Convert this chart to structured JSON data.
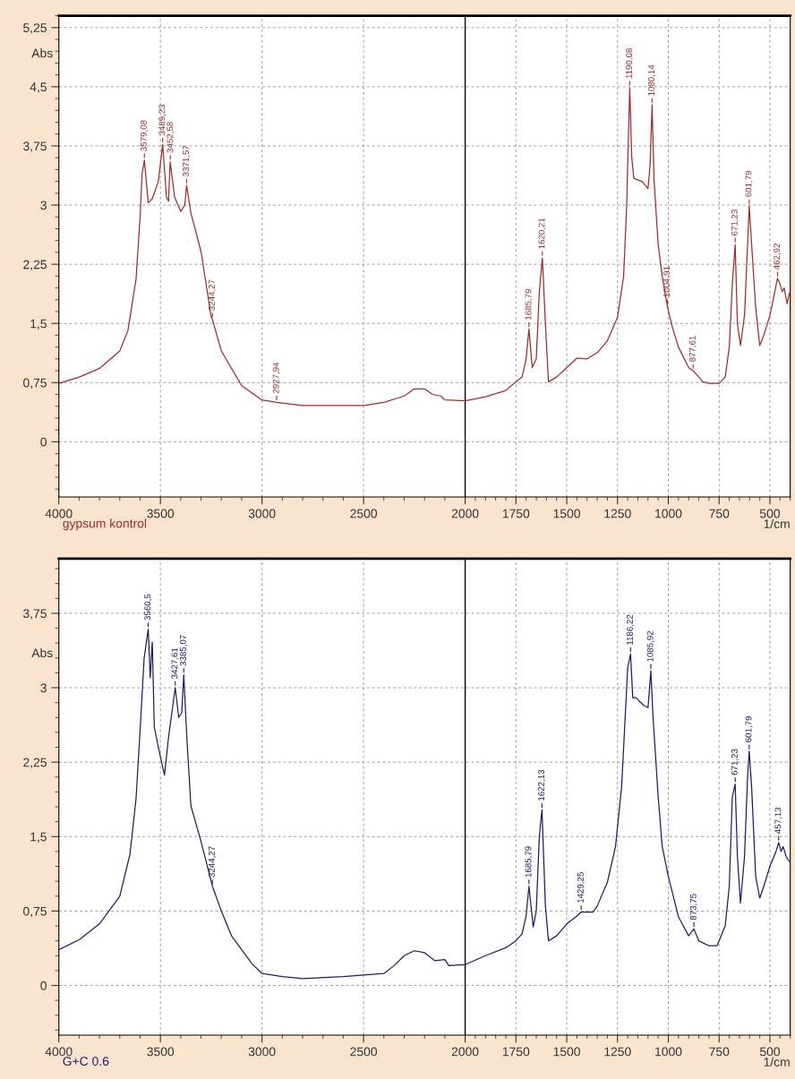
{
  "chart_data": [
    {
      "type": "line",
      "xlabel": "1/cm",
      "ylabel": "Abs",
      "xlim": [
        4000,
        400
      ],
      "ylim": [
        -0.7,
        5.4
      ],
      "xticks": [
        4000,
        3500,
        3000,
        2500,
        2000,
        1750,
        1500,
        1250,
        1000,
        750,
        500
      ],
      "yticks": [
        {
          "value": 0,
          "label": "0"
        },
        {
          "value": 0.75,
          "label": "0,75"
        },
        {
          "value": 1.5,
          "label": "1,5"
        },
        {
          "value": 2.25,
          "label": "2,25"
        },
        {
          "value": 3,
          "label": "3"
        },
        {
          "value": 3.75,
          "label": "3,75"
        },
        {
          "value": 4.5,
          "label": "4,5"
        },
        {
          "value": 5.25,
          "label": "5,25"
        }
      ],
      "grid": true,
      "legend": false,
      "line_style": "solid",
      "marker": "none",
      "ref_lines": [
        {
          "axis": "x",
          "value": 2000,
          "color": "#000000"
        }
      ],
      "series": [
        {
          "name": "gypsum kontrol",
          "color": "#a52a2a",
          "x": [
            4000,
            3900,
            3800,
            3700,
            3660,
            3620,
            3600,
            3590,
            3579,
            3560,
            3540,
            3510,
            3489,
            3470,
            3460,
            3452,
            3430,
            3400,
            3380,
            3371,
            3350,
            3300,
            3250,
            3244,
            3200,
            3100,
            3000,
            2928,
            2800,
            2500,
            2400,
            2300,
            2250,
            2200,
            2160,
            2120,
            2100,
            2000,
            1900,
            1800,
            1750,
            1720,
            1700,
            1686,
            1670,
            1650,
            1635,
            1620,
            1605,
            1590,
            1550,
            1500,
            1450,
            1400,
            1350,
            1300,
            1250,
            1220,
            1205,
            1190,
            1180,
            1170,
            1130,
            1100,
            1090,
            1080,
            1070,
            1050,
            1030,
            1005,
            980,
            950,
            900,
            878,
            860,
            830,
            800,
            750,
            720,
            700,
            685,
            671,
            660,
            645,
            625,
            610,
            602,
            590,
            570,
            550,
            530,
            500,
            480,
            463,
            450,
            440,
            430,
            415,
            405
          ],
          "values": [
            0.74,
            0.82,
            0.93,
            1.15,
            1.41,
            2.06,
            2.85,
            3.4,
            3.57,
            3.03,
            3.08,
            3.3,
            3.77,
            3.1,
            3.05,
            3.55,
            3.1,
            2.92,
            3.0,
            3.25,
            2.9,
            2.41,
            1.58,
            1.55,
            1.15,
            0.71,
            0.53,
            0.5,
            0.46,
            0.46,
            0.5,
            0.58,
            0.67,
            0.67,
            0.6,
            0.58,
            0.53,
            0.52,
            0.57,
            0.65,
            0.76,
            0.82,
            1.05,
            1.43,
            0.94,
            1.05,
            1.9,
            2.33,
            1.5,
            0.76,
            0.82,
            0.94,
            1.06,
            1.05,
            1.13,
            1.28,
            1.58,
            2.1,
            3.0,
            4.49,
            3.6,
            3.34,
            3.3,
            3.21,
            3.5,
            4.27,
            3.3,
            2.5,
            2.1,
            1.72,
            1.45,
            1.2,
            0.94,
            0.9,
            0.85,
            0.76,
            0.74,
            0.74,
            0.82,
            1.2,
            2.0,
            2.5,
            1.5,
            1.22,
            1.6,
            2.5,
            2.99,
            2.5,
            1.7,
            1.22,
            1.35,
            1.6,
            1.85,
            2.07,
            2.0,
            1.9,
            1.95,
            1.75,
            1.88
          ]
        }
      ],
      "annotations": [
        {
          "text": "3579,08",
          "x": 3579,
          "y": 3.57
        },
        {
          "text": "3489,23",
          "x": 3489,
          "y": 3.77
        },
        {
          "text": "3452,58",
          "x": 3452,
          "y": 3.55
        },
        {
          "text": "3371,57",
          "x": 3371,
          "y": 3.25
        },
        {
          "text": "3244,27",
          "x": 3244,
          "y": 1.55
        },
        {
          "text": "2927,94",
          "x": 2928,
          "y": 0.5
        },
        {
          "text": "1685,79",
          "x": 1686,
          "y": 1.43
        },
        {
          "text": "1620,21",
          "x": 1620,
          "y": 2.33
        },
        {
          "text": "1190,08",
          "x": 1190,
          "y": 4.49
        },
        {
          "text": "1080,14",
          "x": 1080,
          "y": 4.27
        },
        {
          "text": "1004,91",
          "x": 1005,
          "y": 1.72
        },
        {
          "text": "877,61",
          "x": 878,
          "y": 0.9
        },
        {
          "text": "671,23",
          "x": 671,
          "y": 2.5
        },
        {
          "text": "601,79",
          "x": 602,
          "y": 2.99
        },
        {
          "text": "462,92",
          "x": 463,
          "y": 2.07
        }
      ]
    },
    {
      "type": "line",
      "xlabel": "1/cm",
      "ylabel": "Abs",
      "xlim": [
        4000,
        400
      ],
      "ylim": [
        -0.5,
        4.3
      ],
      "xticks": [
        4000,
        3500,
        3000,
        2500,
        2000,
        1750,
        1500,
        1250,
        1000,
        750,
        500
      ],
      "yticks": [
        {
          "value": 0,
          "label": "0"
        },
        {
          "value": 0.75,
          "label": "0,75"
        },
        {
          "value": 1.5,
          "label": "1,5"
        },
        {
          "value": 2.25,
          "label": "2,25"
        },
        {
          "value": 3,
          "label": "3"
        },
        {
          "value": 3.75,
          "label": "3,75"
        }
      ],
      "grid": true,
      "legend": false,
      "line_style": "solid",
      "marker": "none",
      "ref_lines": [
        {
          "axis": "x",
          "value": 2000,
          "color": "#000000"
        }
      ],
      "series": [
        {
          "name": "G+C 0.6",
          "color": "#1c1c6e",
          "x": [
            4000,
            3900,
            3800,
            3700,
            3650,
            3620,
            3600,
            3580,
            3560,
            3550,
            3540,
            3530,
            3510,
            3480,
            3460,
            3427,
            3410,
            3395,
            3385,
            3370,
            3350,
            3300,
            3244,
            3200,
            3150,
            3100,
            3050,
            3000,
            2900,
            2800,
            2600,
            2400,
            2350,
            2300,
            2250,
            2200,
            2150,
            2100,
            2080,
            2000,
            1900,
            1800,
            1750,
            1720,
            1700,
            1686,
            1665,
            1650,
            1635,
            1622,
            1605,
            1590,
            1550,
            1500,
            1450,
            1429,
            1400,
            1370,
            1350,
            1300,
            1260,
            1230,
            1200,
            1186,
            1175,
            1160,
            1120,
            1100,
            1086,
            1075,
            1050,
            1030,
            1000,
            950,
            900,
            874,
            850,
            800,
            760,
            720,
            700,
            685,
            671,
            660,
            645,
            625,
            610,
            602,
            590,
            570,
            550,
            530,
            500,
            470,
            457,
            445,
            435,
            420,
            405
          ],
          "values": [
            0.36,
            0.46,
            0.62,
            0.9,
            1.32,
            1.88,
            2.57,
            3.3,
            3.59,
            3.1,
            3.46,
            2.6,
            2.4,
            2.12,
            2.5,
            3.0,
            2.7,
            2.75,
            3.13,
            2.5,
            1.81,
            1.45,
            1.0,
            0.75,
            0.5,
            0.36,
            0.22,
            0.12,
            0.09,
            0.07,
            0.09,
            0.12,
            0.2,
            0.3,
            0.35,
            0.33,
            0.25,
            0.26,
            0.2,
            0.21,
            0.3,
            0.38,
            0.45,
            0.52,
            0.7,
            1.0,
            0.59,
            0.75,
            1.5,
            1.77,
            0.8,
            0.45,
            0.5,
            0.62,
            0.7,
            0.74,
            0.74,
            0.74,
            0.8,
            1.04,
            1.4,
            2.0,
            3.2,
            3.34,
            2.9,
            2.9,
            2.82,
            2.8,
            3.17,
            2.7,
            1.9,
            1.4,
            1.1,
            0.69,
            0.5,
            0.57,
            0.45,
            0.4,
            0.4,
            0.6,
            1.0,
            1.9,
            2.03,
            1.3,
            0.83,
            1.3,
            2.1,
            2.36,
            2.0,
            1.1,
            0.88,
            1.0,
            1.2,
            1.35,
            1.44,
            1.35,
            1.4,
            1.3,
            1.25
          ]
        }
      ],
      "annotations": [
        {
          "text": "3560,5",
          "x": 3560,
          "y": 3.59
        },
        {
          "text": "3427,61",
          "x": 3427,
          "y": 3.0
        },
        {
          "text": "3385,07",
          "x": 3385,
          "y": 3.13
        },
        {
          "text": "3244,27",
          "x": 3244,
          "y": 1.0
        },
        {
          "text": "1685,79",
          "x": 1686,
          "y": 1.0
        },
        {
          "text": "1622,13",
          "x": 1622,
          "y": 1.77
        },
        {
          "text": "1429,25",
          "x": 1429,
          "y": 0.74
        },
        {
          "text": "1186,22",
          "x": 1186,
          "y": 3.34
        },
        {
          "text": "1085,92",
          "x": 1086,
          "y": 3.17
        },
        {
          "text": "873,75",
          "x": 874,
          "y": 0.57
        },
        {
          "text": "671,23",
          "x": 671,
          "y": 2.03
        },
        {
          "text": "601,79",
          "x": 602,
          "y": 2.36
        },
        {
          "text": "457,13",
          "x": 457,
          "y": 1.44
        }
      ]
    }
  ]
}
